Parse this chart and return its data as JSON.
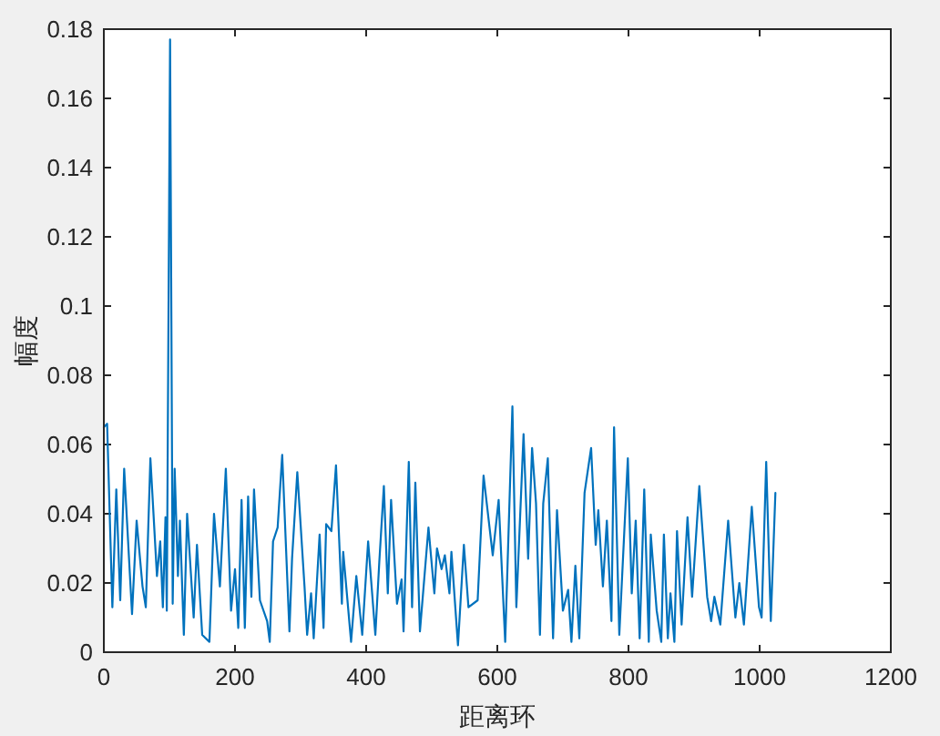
{
  "chart_data": {
    "type": "line",
    "xlabel": "距离环",
    "ylabel": "幅度",
    "xlim": [
      0,
      1200
    ],
    "ylim": [
      0,
      0.18
    ],
    "xticks": [
      0,
      200,
      400,
      600,
      800,
      1000,
      1200
    ],
    "yticks": [
      0,
      0.02,
      0.04,
      0.06,
      0.08,
      0.1,
      0.12,
      0.14,
      0.16,
      0.18
    ],
    "grid": false,
    "marker": "none",
    "line_style": "solid",
    "series": [
      {
        "color": "#0072bd",
        "x": [
          0,
          5,
          13,
          19,
          25,
          31,
          43,
          50,
          59,
          64,
          71,
          81,
          86,
          90,
          94,
          96,
          101,
          105,
          108,
          113,
          116,
          122,
          127,
          137,
          142,
          150,
          161,
          168,
          177,
          186,
          194,
          200,
          205,
          210,
          215,
          220,
          225,
          229,
          238,
          249,
          253,
          258,
          265,
          272,
          283,
          287,
          295,
          306,
          310,
          316,
          320,
          329,
          335,
          339,
          347,
          354,
          363,
          365,
          377,
          385,
          394,
          403,
          414,
          420,
          427,
          433,
          438,
          447,
          454,
          457,
          465,
          470,
          475,
          482,
          495,
          504,
          508,
          515,
          520,
          527,
          530,
          540,
          549,
          556,
          570,
          579,
          593,
          602,
          612,
          623,
          629,
          640,
          647,
          653,
          659,
          665,
          670,
          677,
          685,
          691,
          700,
          708,
          713,
          719,
          725,
          733,
          743,
          750,
          754,
          761,
          767,
          774,
          778,
          786,
          799,
          805,
          811,
          817,
          824,
          831,
          834,
          843,
          850,
          854,
          860,
          864,
          870,
          874,
          881,
          890,
          897,
          908,
          920,
          926,
          931,
          940,
          952,
          963,
          969,
          976,
          988,
          999,
          1003,
          1010,
          1017,
          1024
        ],
        "values": [
          0.065,
          0.066,
          0.013,
          0.047,
          0.015,
          0.053,
          0.011,
          0.038,
          0.019,
          0.013,
          0.056,
          0.022,
          0.032,
          0.013,
          0.039,
          0.012,
          0.177,
          0.014,
          0.053,
          0.022,
          0.038,
          0.005,
          0.04,
          0.01,
          0.031,
          0.005,
          0.003,
          0.04,
          0.019,
          0.053,
          0.012,
          0.024,
          0.007,
          0.044,
          0.007,
          0.045,
          0.016,
          0.047,
          0.015,
          0.009,
          0.003,
          0.032,
          0.036,
          0.057,
          0.006,
          0.027,
          0.052,
          0.019,
          0.005,
          0.017,
          0.004,
          0.034,
          0.007,
          0.037,
          0.035,
          0.054,
          0.014,
          0.029,
          0.003,
          0.022,
          0.005,
          0.032,
          0.005,
          0.026,
          0.048,
          0.017,
          0.044,
          0.014,
          0.021,
          0.006,
          0.055,
          0.013,
          0.049,
          0.006,
          0.036,
          0.017,
          0.03,
          0.024,
          0.028,
          0.017,
          0.029,
          0.002,
          0.031,
          0.013,
          0.015,
          0.051,
          0.028,
          0.044,
          0.003,
          0.071,
          0.013,
          0.063,
          0.027,
          0.059,
          0.043,
          0.005,
          0.043,
          0.056,
          0.004,
          0.041,
          0.012,
          0.018,
          0.003,
          0.025,
          0.004,
          0.046,
          0.059,
          0.031,
          0.041,
          0.019,
          0.038,
          0.009,
          0.065,
          0.005,
          0.056,
          0.017,
          0.038,
          0.004,
          0.047,
          0.003,
          0.034,
          0.012,
          0.003,
          0.034,
          0.004,
          0.017,
          0.003,
          0.035,
          0.008,
          0.039,
          0.016,
          0.048,
          0.016,
          0.009,
          0.016,
          0.008,
          0.038,
          0.01,
          0.02,
          0.008,
          0.042,
          0.013,
          0.01,
          0.055,
          0.009,
          0.046
        ]
      }
    ]
  }
}
